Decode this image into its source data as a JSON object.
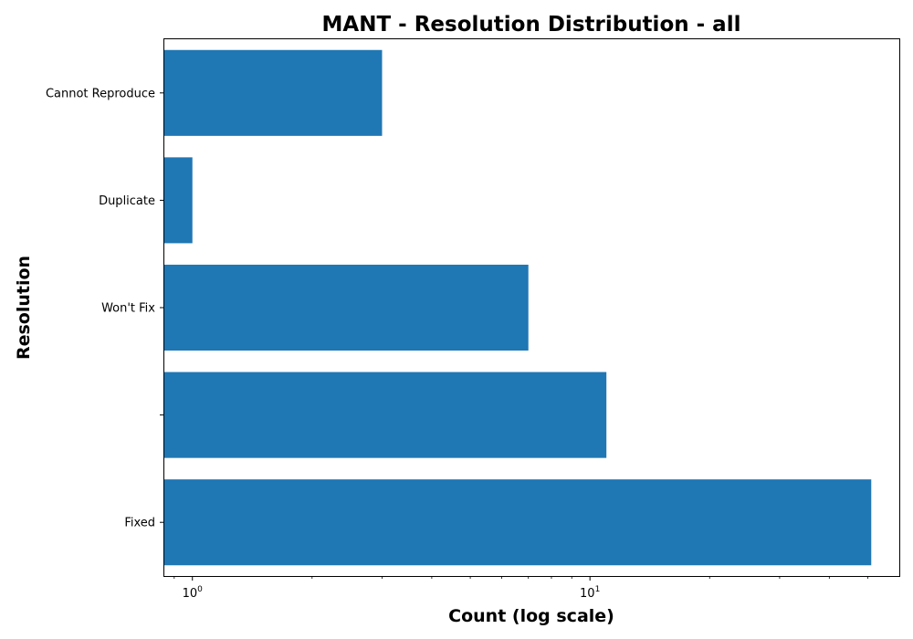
{
  "chart_data": {
    "type": "bar",
    "orientation": "horizontal",
    "title": "MANT - Resolution Distribution - all",
    "xlabel": "Count (log scale)",
    "ylabel": "Resolution",
    "x_scale": "log",
    "xlim": [
      0.85,
      60
    ],
    "categories": [
      "Cannot Reproduce",
      "Duplicate",
      "Won't Fix",
      "",
      "Fixed"
    ],
    "values": [
      3,
      1,
      7,
      11,
      51
    ],
    "x_ticks": [
      {
        "value": 1,
        "base": "10",
        "exp": "0"
      },
      {
        "value": 10,
        "base": "10",
        "exp": "1"
      }
    ],
    "bar_color": "#1f77b4",
    "grid": false
  }
}
